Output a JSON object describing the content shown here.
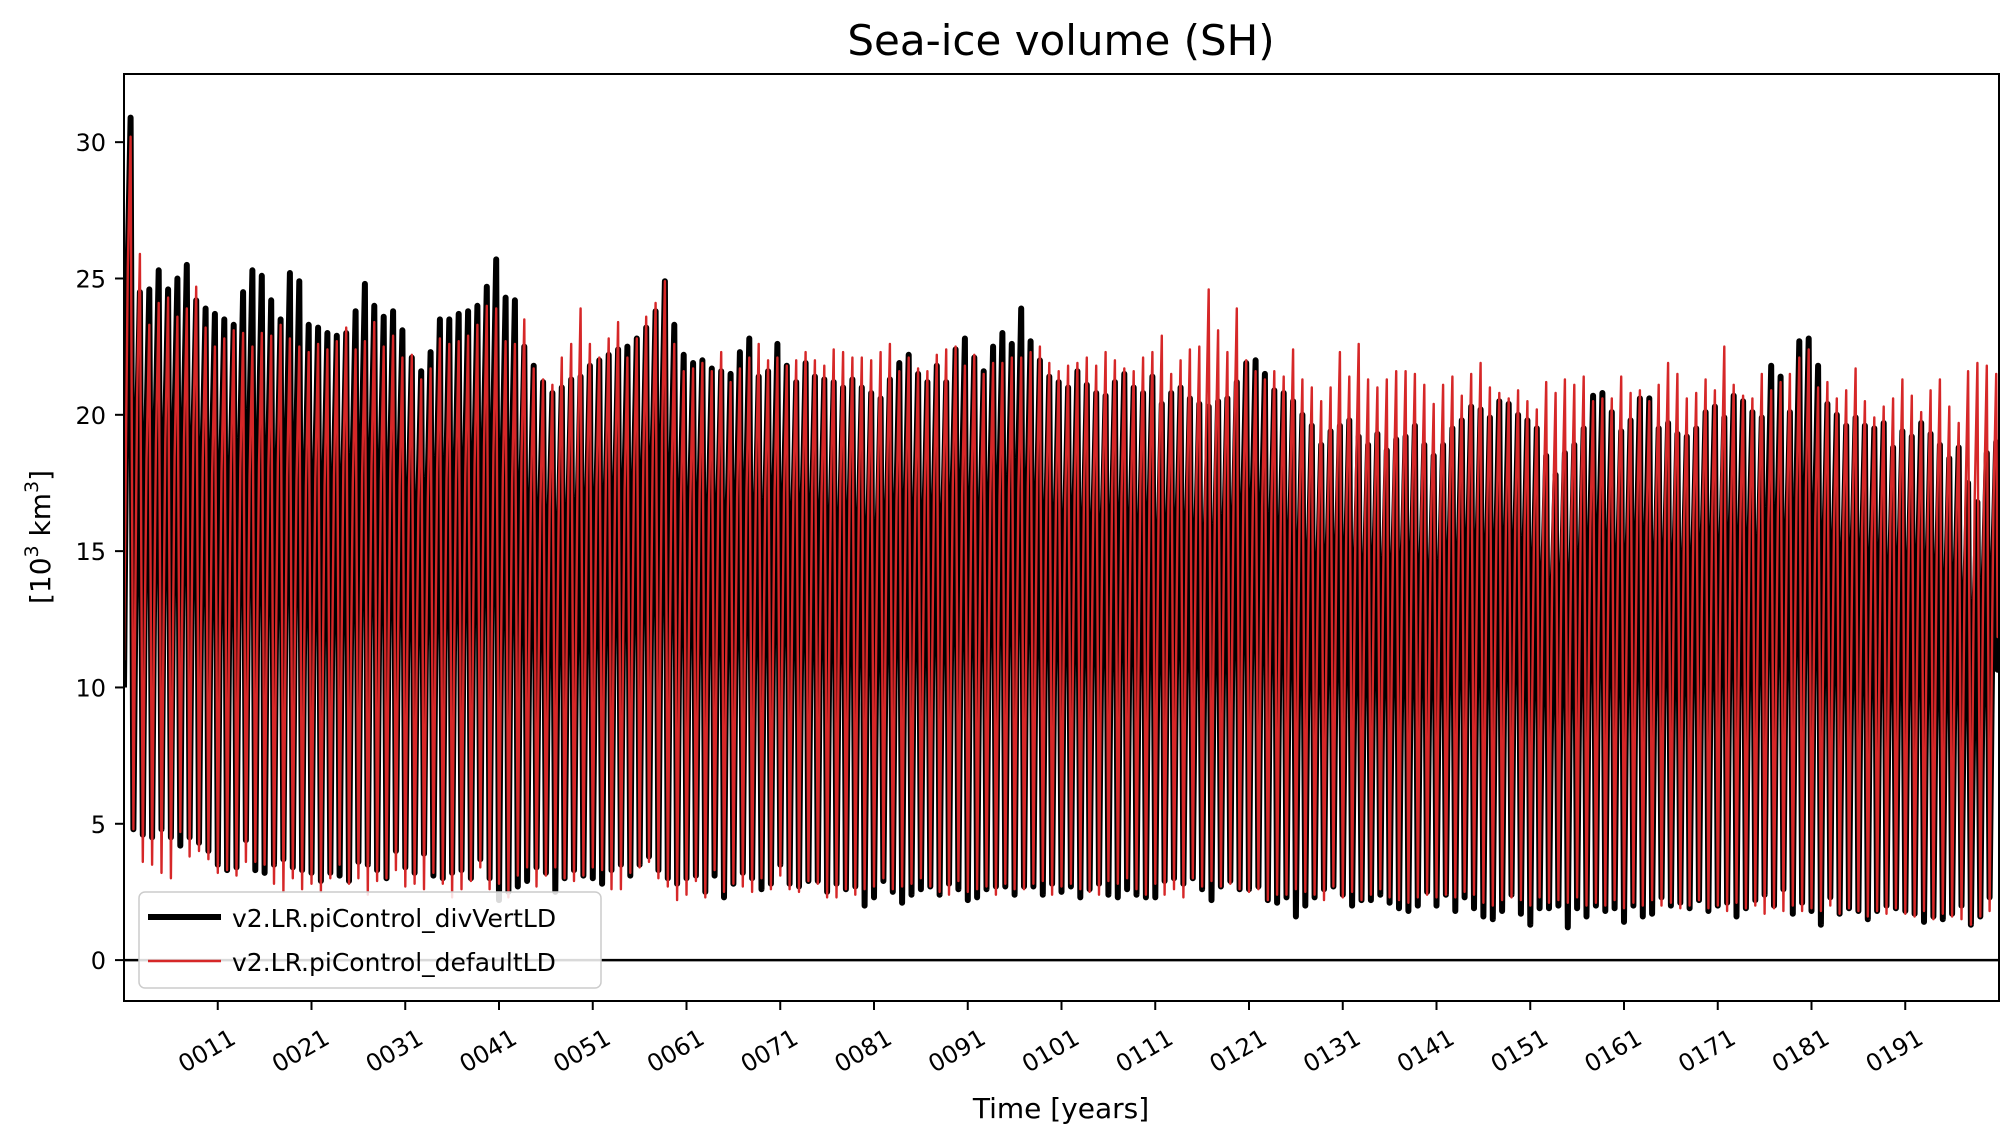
{
  "chart_data": {
    "type": "line",
    "title": "Sea-ice volume (SH)",
    "xlabel": "Time [years]",
    "ylabel_base": "[10",
    "ylabel_exp1": "3",
    "ylabel_mid": " km",
    "ylabel_exp2": "3",
    "ylabel_end": "]",
    "xlim": [
      1,
      201
    ],
    "ylim": [
      -1.5,
      32.5
    ],
    "yticks": [
      0,
      5,
      10,
      15,
      20,
      25,
      30
    ],
    "xticks": [
      11,
      21,
      31,
      41,
      51,
      61,
      71,
      81,
      91,
      101,
      111,
      121,
      131,
      141,
      151,
      161,
      171,
      181,
      191
    ],
    "xtick_labels": [
      "0011",
      "0021",
      "0031",
      "0041",
      "0051",
      "0061",
      "0071",
      "0081",
      "0091",
      "0101",
      "0111",
      "0121",
      "0131",
      "0141",
      "0151",
      "0161",
      "0171",
      "0181",
      "0191"
    ],
    "hline": 0,
    "legend_position": "lower left",
    "series": [
      {
        "name": "v2.LR.piControl_divVertLD",
        "color": "#000000",
        "annual_max": [
          30.9,
          24.5,
          24.6,
          25.3,
          24.6,
          25.0,
          25.5,
          24.2,
          23.9,
          23.7,
          23.5,
          23.3,
          24.5,
          25.3,
          25.1,
          24.2,
          23.5,
          25.2,
          24.9,
          23.3,
          23.2,
          23.0,
          22.9,
          23.0,
          23.8,
          24.8,
          24.0,
          23.6,
          23.8,
          23.1,
          22.1,
          21.6,
          22.3,
          23.5,
          23.5,
          23.7,
          23.8,
          24.0,
          24.7,
          25.7,
          24.3,
          24.2,
          22.5,
          21.8,
          21.2,
          20.8,
          21.0,
          21.3,
          21.4,
          21.8,
          22.0,
          22.2,
          22.4,
          22.5,
          22.8,
          23.2,
          23.8,
          24.9,
          23.3,
          22.2,
          21.9,
          22.0,
          21.7,
          21.6,
          21.5,
          22.3,
          22.8,
          21.4,
          21.6,
          22.6,
          21.8,
          21.2,
          21.9,
          21.4,
          21.3,
          21.2,
          21.0,
          21.3,
          21.0,
          20.8,
          20.6,
          21.3,
          21.9,
          22.2,
          21.5,
          21.2,
          21.8,
          21.2,
          22.4,
          22.8,
          22.1,
          21.6,
          22.5,
          23.0,
          22.6,
          23.9,
          22.7,
          22.0,
          21.4,
          21.2,
          21.0,
          21.6,
          21.1,
          20.8,
          20.7,
          21.2,
          21.5,
          21.0,
          20.8,
          21.4,
          20.4,
          20.8,
          21.0,
          20.6,
          20.4,
          20.3,
          20.5,
          20.6,
          21.2,
          21.9,
          22.0,
          21.5,
          20.9,
          20.8,
          20.5,
          20.0,
          19.6,
          18.9,
          19.4,
          19.6,
          19.8,
          19.2,
          18.9,
          19.3,
          18.7,
          19.1,
          19.2,
          19.6,
          18.9,
          18.5,
          18.9,
          19.5,
          19.8,
          20.3,
          20.2,
          19.9,
          20.5,
          20.4,
          20.0,
          19.8,
          19.5,
          18.5,
          17.8,
          18.6,
          18.9,
          19.5,
          20.7,
          20.8,
          20.1,
          19.4,
          19.8,
          20.6,
          20.6,
          19.5,
          19.7,
          19.3,
          19.2,
          19.5,
          20.1,
          20.3,
          19.9,
          20.7,
          20.5,
          20.1,
          19.9,
          21.8,
          21.4,
          20.1,
          22.7,
          22.8,
          21.8,
          20.4,
          20.0,
          19.6,
          19.9,
          19.6,
          19.5,
          19.7,
          18.8,
          19.4,
          19.2,
          19.7,
          19.3,
          18.9,
          18.4,
          18.8,
          17.5,
          16.8,
          18.6,
          19.0,
          19.2
        ],
        "annual_min": [
          10.0,
          4.8,
          4.6,
          4.5,
          4.8,
          4.5,
          4.2,
          4.5,
          4.3,
          4.0,
          3.5,
          3.3,
          3.4,
          4.4,
          3.3,
          3.2,
          3.5,
          3.7,
          3.4,
          3.3,
          3.2,
          2.9,
          3.2,
          3.1,
          2.9,
          3.6,
          3.5,
          3.3,
          3.0,
          4.0,
          3.4,
          3.2,
          3.9,
          3.1,
          3.0,
          3.2,
          3.3,
          3.0,
          3.7,
          3.0,
          2.2,
          2.5,
          2.7,
          2.9,
          3.4,
          3.2,
          2.5,
          3.0,
          3.3,
          3.1,
          3.0,
          2.8,
          3.3,
          3.5,
          3.1,
          3.5,
          3.8,
          3.3,
          3.0,
          2.8,
          3.0,
          3.1,
          2.5,
          3.1,
          2.3,
          2.8,
          3.2,
          3.0,
          2.6,
          2.8,
          3.5,
          2.8,
          2.7,
          2.9,
          2.9,
          2.5,
          2.8,
          2.6,
          2.7,
          2.0,
          2.3,
          2.9,
          2.5,
          2.1,
          2.4,
          2.6,
          2.7,
          2.4,
          2.8,
          2.6,
          2.2,
          2.3,
          2.6,
          2.7,
          2.7,
          2.4,
          2.7,
          2.7,
          2.4,
          2.8,
          2.5,
          2.7,
          2.3,
          2.6,
          2.8,
          2.4,
          2.3,
          2.6,
          2.4,
          2.3,
          2.3,
          2.9,
          3.0,
          2.8,
          3.0,
          2.6,
          2.2,
          2.7,
          2.9,
          2.6,
          2.6,
          2.7,
          2.2,
          2.1,
          2.3,
          1.6,
          2.0,
          2.3,
          2.6,
          2.7,
          2.4,
          2.0,
          2.2,
          2.2,
          2.4,
          2.1,
          1.9,
          1.8,
          2.0,
          2.5,
          2.0,
          2.4,
          1.8,
          2.3,
          1.9,
          1.6,
          1.5,
          1.8,
          2.4,
          1.7,
          1.3,
          1.9,
          1.9,
          2.0,
          1.2,
          1.9,
          1.6,
          2.0,
          1.8,
          1.9,
          1.4,
          2.0,
          1.6,
          1.7,
          2.3,
          2.0,
          2.1,
          1.9,
          2.2,
          1.8,
          2.0,
          2.1,
          1.6,
          1.9,
          2.2,
          2.4,
          2.0,
          2.6,
          1.7,
          2.1,
          1.8,
          1.3,
          2.3,
          1.7,
          1.9,
          1.8,
          1.5,
          1.8,
          2.0,
          1.9,
          1.8,
          1.7,
          1.4,
          1.6,
          1.5,
          1.7,
          2.0,
          1.3,
          1.6,
          2.3,
          2.3
        ]
      },
      {
        "name": "v2.LR.piControl_defaultLD",
        "color": "#d62728",
        "annual_max": [
          30.2,
          25.9,
          23.3,
          24.1,
          24.3,
          23.6,
          23.9,
          24.7,
          23.2,
          22.5,
          22.8,
          23.1,
          23.0,
          22.5,
          23.0,
          22.9,
          23.3,
          22.8,
          22.5,
          22.3,
          22.6,
          22.4,
          22.7,
          23.2,
          22.4,
          22.7,
          23.4,
          22.5,
          22.9,
          22.1,
          22.2,
          21.3,
          21.7,
          22.8,
          22.6,
          22.7,
          22.9,
          23.3,
          24.0,
          23.9,
          22.7,
          22.6,
          23.5,
          21.7,
          21.3,
          21.1,
          22.1,
          22.6,
          23.9,
          22.6,
          22.1,
          22.8,
          23.4,
          22.1,
          22.8,
          23.6,
          24.1,
          24.9,
          22.6,
          21.6,
          21.7,
          21.9,
          21.6,
          22.3,
          21.2,
          21.7,
          22.1,
          22.6,
          22.0,
          22.1,
          21.8,
          22.0,
          22.3,
          22.0,
          21.8,
          22.4,
          22.3,
          22.1,
          22.1,
          22.0,
          22.3,
          22.6,
          21.6,
          22.1,
          21.7,
          21.6,
          22.2,
          22.4,
          22.5,
          21.8,
          22.2,
          21.5,
          21.9,
          21.9,
          22.1,
          22.1,
          22.3,
          22.5,
          21.9,
          21.6,
          21.8,
          21.9,
          22.1,
          21.8,
          22.3,
          22.0,
          21.7,
          21.6,
          22.1,
          22.3,
          22.9,
          21.5,
          22.0,
          22.4,
          22.5,
          24.6,
          23.1,
          22.3,
          23.9,
          22.0,
          21.6,
          21.3,
          21.6,
          21.4,
          22.4,
          21.3,
          21.0,
          20.5,
          21.0,
          22.3,
          21.4,
          22.6,
          21.3,
          21.0,
          21.3,
          21.6,
          21.6,
          21.5,
          21.1,
          20.4,
          21.1,
          21.4,
          20.7,
          21.5,
          21.9,
          21.0,
          20.8,
          20.6,
          20.9,
          20.5,
          20.2,
          21.2,
          20.8,
          21.3,
          21.1,
          21.4,
          20.5,
          20.6,
          20.6,
          21.4,
          20.8,
          20.9,
          20.5,
          21.1,
          21.9,
          21.5,
          20.6,
          20.8,
          21.3,
          20.9,
          22.5,
          21.1,
          20.7,
          20.6,
          21.5,
          20.9,
          21.2,
          21.5,
          22.1,
          22.4,
          21.0,
          21.2,
          20.6,
          20.9,
          21.7,
          20.5,
          19.9,
          20.3,
          20.6,
          21.3,
          20.7,
          20.1,
          20.9,
          21.3,
          20.3,
          19.7,
          21.6,
          21.9,
          21.8,
          21.5,
          21.7
        ],
        "annual_min": [
          11.0,
          4.8,
          3.6,
          3.5,
          3.2,
          3.0,
          4.7,
          3.8,
          4.0,
          3.7,
          3.2,
          3.3,
          3.1,
          3.6,
          3.6,
          3.5,
          2.8,
          2.5,
          3.0,
          2.6,
          2.8,
          2.5,
          3.0,
          3.5,
          2.8,
          3.0,
          2.4,
          2.9,
          3.0,
          3.3,
          2.7,
          2.8,
          2.6,
          3.2,
          2.8,
          2.3,
          2.6,
          2.9,
          3.4,
          2.6,
          2.8,
          2.3,
          3.1,
          3.4,
          2.7,
          3.1,
          3.4,
          3.0,
          2.9,
          3.1,
          3.4,
          3.3,
          2.6,
          2.6,
          3.2,
          3.4,
          3.6,
          3.0,
          2.7,
          2.2,
          2.4,
          2.9,
          2.3,
          3.3,
          2.5,
          2.8,
          2.7,
          2.5,
          3.0,
          2.6,
          3.1,
          2.6,
          2.5,
          2.9,
          2.8,
          2.3,
          2.3,
          2.6,
          2.4,
          2.6,
          2.7,
          3.0,
          2.6,
          2.7,
          2.8,
          3.0,
          2.7,
          2.5,
          2.4,
          2.9,
          2.5,
          2.6,
          2.7,
          2.4,
          2.8,
          2.6,
          2.6,
          2.8,
          2.9,
          2.4,
          2.7,
          2.8,
          2.6,
          2.5,
          2.4,
          2.9,
          2.8,
          3.0,
          2.6,
          2.4,
          2.8,
          2.4,
          2.6,
          2.3,
          3.0,
          2.7,
          2.9,
          2.7,
          2.8,
          2.6,
          2.5,
          2.6,
          2.2,
          2.4,
          2.4,
          2.6,
          2.5,
          2.4,
          2.2,
          2.7,
          2.3,
          2.5,
          2.2,
          2.4,
          2.6,
          2.3,
          2.2,
          2.1,
          2.3,
          2.4,
          2.3,
          2.4,
          2.3,
          2.5,
          2.4,
          2.1,
          2.0,
          2.2,
          2.3,
          2.2,
          2.0,
          2.3,
          2.1,
          2.2,
          2.1,
          2.3,
          2.0,
          2.1,
          2.0,
          2.2,
          1.9,
          2.1,
          2.0,
          2.2,
          2.0,
          2.1,
          1.9,
          2.0,
          2.2,
          1.9,
          2.0,
          1.8,
          2.1,
          1.9,
          2.0,
          1.7,
          1.9,
          1.8,
          2.0,
          1.8,
          1.9,
          1.8,
          2.0,
          1.7,
          1.9,
          1.8,
          1.6,
          1.8,
          1.7,
          1.9,
          1.7,
          1.6,
          1.8,
          1.5,
          1.7,
          1.6,
          1.5,
          1.3,
          1.6,
          1.8,
          2.2
        ]
      }
    ]
  }
}
